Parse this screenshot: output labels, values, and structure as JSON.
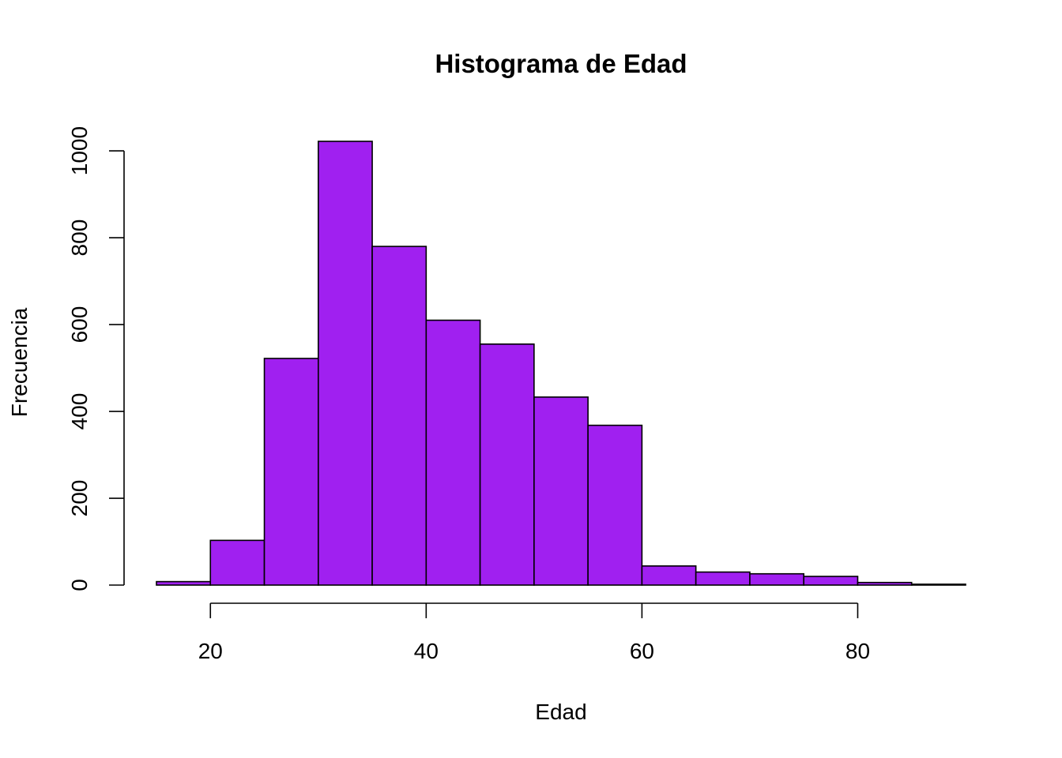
{
  "chart_data": {
    "type": "bar",
    "title": "Histograma de Edad",
    "xlabel": "Edad",
    "ylabel": "Frecuencia",
    "bar_color": "#A020F0",
    "bins": [
      {
        "start": 15,
        "end": 20,
        "count": 8
      },
      {
        "start": 20,
        "end": 25,
        "count": 103
      },
      {
        "start": 25,
        "end": 30,
        "count": 522
      },
      {
        "start": 30,
        "end": 35,
        "count": 1022
      },
      {
        "start": 35,
        "end": 40,
        "count": 780
      },
      {
        "start": 40,
        "end": 45,
        "count": 610
      },
      {
        "start": 45,
        "end": 50,
        "count": 555
      },
      {
        "start": 50,
        "end": 55,
        "count": 433
      },
      {
        "start": 55,
        "end": 60,
        "count": 368
      },
      {
        "start": 60,
        "end": 65,
        "count": 44
      },
      {
        "start": 65,
        "end": 70,
        "count": 30
      },
      {
        "start": 70,
        "end": 75,
        "count": 26
      },
      {
        "start": 75,
        "end": 80,
        "count": 20
      },
      {
        "start": 80,
        "end": 85,
        "count": 6
      },
      {
        "start": 85,
        "end": 90,
        "count": 2
      }
    ],
    "x_ticks": [
      20,
      40,
      60,
      80
    ],
    "y_ticks": [
      0,
      200,
      400,
      600,
      800,
      1000
    ],
    "xlim": [
      15,
      90
    ],
    "ylim": [
      0,
      1022
    ]
  }
}
